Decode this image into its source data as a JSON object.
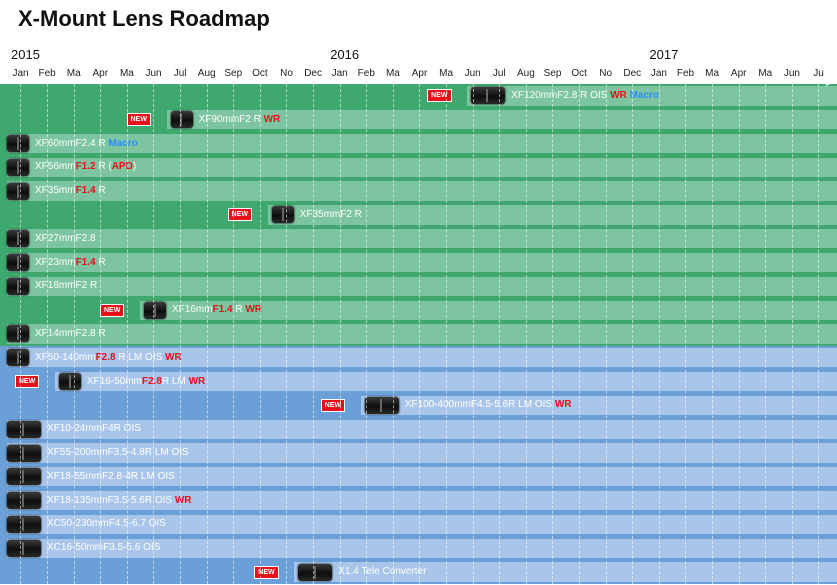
{
  "title": "X-Mount Lens Roadmap",
  "chart_data": {
    "type": "gantt",
    "title": "X-Mount Lens Roadmap",
    "years": [
      {
        "label": "2015",
        "month_index": 0
      },
      {
        "label": "2016",
        "month_index": 12
      },
      {
        "label": "2017",
        "month_index": 24
      }
    ],
    "months": [
      "Jan",
      "Feb",
      "Ma",
      "Apr",
      "Ma",
      "Jun",
      "Jul",
      "Aug",
      "Sep",
      "Oct",
      "No",
      "Dec",
      "Jan",
      "Feb",
      "Ma",
      "Apr",
      "Ma",
      "Jun",
      "Jul",
      "Aug",
      "Sep",
      "Oct",
      "No",
      "Dec",
      "Jan",
      "Feb",
      "Ma",
      "Apr",
      "Ma",
      "Jun",
      "Ju"
    ],
    "month_subs": {
      "2": "r",
      "4": "y",
      "10": "v",
      "14": "r",
      "16": "y",
      "22": "v",
      "26": "r",
      "28": "y"
    },
    "groups": [
      {
        "name": "",
        "color": "#3ea86e",
        "row_color": "#7dc5a0"
      },
      {
        "name": "",
        "color": "#6b9fd8",
        "row_color": "#a9c6ea"
      }
    ],
    "lenses": [
      {
        "group": 0,
        "start": 17.3,
        "new": true,
        "parts": [
          {
            "t": "XF120mmF2.8 R OIS "
          },
          {
            "t": "WR",
            "s": "hl"
          },
          {
            "t": " "
          },
          {
            "t": "Macro",
            "s": "bl"
          }
        ]
      },
      {
        "group": 0,
        "start": 6.0,
        "new": true,
        "parts": [
          {
            "t": "XF90mmF2 R "
          },
          {
            "t": "WR",
            "s": "hl"
          }
        ]
      },
      {
        "group": 0,
        "start": 0,
        "new": false,
        "parts": [
          {
            "t": "XF60mmF2.4 R "
          },
          {
            "t": "Macro",
            "s": "bl"
          }
        ]
      },
      {
        "group": 0,
        "start": 0,
        "new": false,
        "parts": [
          {
            "t": "XF56mm"
          },
          {
            "t": "F1.2",
            "s": "hl"
          },
          {
            "t": " R ("
          },
          {
            "t": "APD",
            "s": "hl"
          },
          {
            "t": ")"
          }
        ]
      },
      {
        "group": 0,
        "start": 0,
        "new": false,
        "parts": [
          {
            "t": "XF35mm"
          },
          {
            "t": "F1.4",
            "s": "hl"
          },
          {
            "t": " R"
          }
        ]
      },
      {
        "group": 0,
        "start": 9.8,
        "new": true,
        "parts": [
          {
            "t": "XF35mmF2 R"
          }
        ]
      },
      {
        "group": 0,
        "start": 0,
        "new": false,
        "parts": [
          {
            "t": "XF27mmF2.8"
          }
        ]
      },
      {
        "group": 0,
        "start": 0,
        "new": false,
        "parts": [
          {
            "t": "XF23mm"
          },
          {
            "t": "F1.4",
            "s": "hl"
          },
          {
            "t": " R"
          }
        ]
      },
      {
        "group": 0,
        "start": 0,
        "new": false,
        "parts": [
          {
            "t": "XF18mmF2 R"
          }
        ]
      },
      {
        "group": 0,
        "start": 5.0,
        "new": true,
        "parts": [
          {
            "t": "XF16mm"
          },
          {
            "t": "F1.4",
            "s": "hl"
          },
          {
            "t": " R "
          },
          {
            "t": "WR",
            "s": "hl"
          }
        ]
      },
      {
        "group": 0,
        "start": 0,
        "new": false,
        "parts": [
          {
            "t": "XF14mmF2.8 R"
          }
        ]
      },
      {
        "group": 1,
        "start": 0,
        "new": false,
        "parts": [
          {
            "t": "XF50-140mm"
          },
          {
            "t": "F2.8",
            "s": "hl"
          },
          {
            "t": " R LM OIS "
          },
          {
            "t": "WR",
            "s": "hl"
          }
        ]
      },
      {
        "group": 1,
        "start": 1.8,
        "new": true,
        "parts": [
          {
            "t": "XF16-50mm"
          },
          {
            "t": "F2.8",
            "s": "hl"
          },
          {
            "t": "R LM "
          },
          {
            "t": "WR",
            "s": "hl"
          }
        ]
      },
      {
        "group": 1,
        "start": 13.3,
        "new": true,
        "parts": [
          {
            "t": "XF100-400mmF4.5-5.6R LM OIS "
          },
          {
            "t": "WR",
            "s": "hl"
          }
        ]
      },
      {
        "group": 1,
        "start": 0,
        "new": false,
        "parts": [
          {
            "t": "XF10-24mmF4R OIS"
          }
        ]
      },
      {
        "group": 1,
        "start": 0,
        "new": false,
        "parts": [
          {
            "t": "XF55-200mmF3.5-4.8R LM OIS"
          }
        ]
      },
      {
        "group": 1,
        "start": 0,
        "new": false,
        "parts": [
          {
            "t": "XF18-55mmF2.8-4R LM OIS"
          }
        ]
      },
      {
        "group": 1,
        "start": 0,
        "new": false,
        "parts": [
          {
            "t": "XF18-135mmF3.5-5.6R OIS "
          },
          {
            "t": "WR",
            "s": "hl"
          }
        ]
      },
      {
        "group": 1,
        "start": 0,
        "new": false,
        "parts": [
          {
            "t": "XC50-230mmF4.5-6.7 OIS"
          }
        ]
      },
      {
        "group": 1,
        "start": 0,
        "new": false,
        "parts": [
          {
            "t": "XC16-50mmF3.5-5.6 OIS"
          }
        ]
      },
      {
        "group": 1,
        "start": 10.8,
        "new": true,
        "parts": [
          {
            "t": "X1.4 Tele Converter"
          }
        ]
      }
    ],
    "new_badge_text": "NEW",
    "colors": {
      "new_badge": "#e8101a",
      "highlight": "#e8101a",
      "macro": "#2a8cff",
      "label": "#ffffff"
    }
  }
}
